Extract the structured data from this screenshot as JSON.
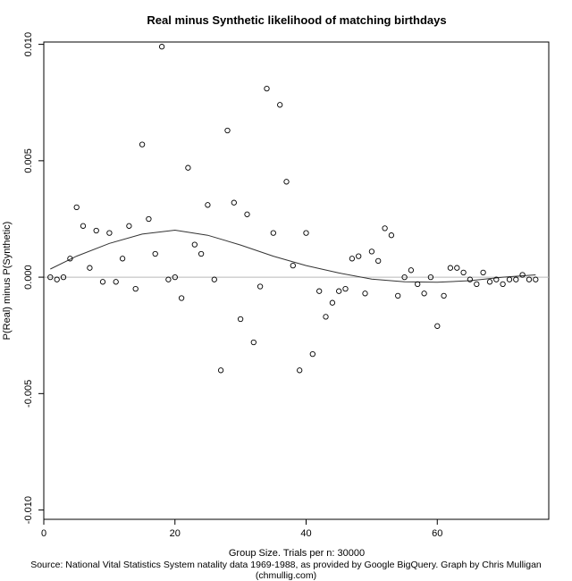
{
  "chart_data": {
    "type": "scatter",
    "title": "Real minus Synthetic likelihood of matching birthdays",
    "xlabel": "Group Size. Trials per n: 30000",
    "ylabel": "P(Real) minus P(Synthetic)",
    "xlim": [
      0,
      77
    ],
    "ylim": [
      -0.0104,
      0.0101
    ],
    "x_ticks": [
      0,
      20,
      40,
      60
    ],
    "y_ticks": [
      -0.01,
      -0.005,
      0.0,
      0.005,
      0.01
    ],
    "y_tick_labels": [
      "-0.010",
      "-0.005",
      "0.000",
      "0.005",
      "0.010"
    ],
    "reference_line_y": 0,
    "points": {
      "x": [
        1,
        2,
        3,
        4,
        5,
        6,
        7,
        8,
        9,
        10,
        11,
        12,
        13,
        14,
        15,
        16,
        17,
        18,
        19,
        20,
        21,
        22,
        23,
        24,
        25,
        26,
        27,
        28,
        29,
        30,
        31,
        32,
        33,
        34,
        35,
        36,
        37,
        38,
        39,
        40,
        41,
        42,
        43,
        44,
        45,
        46,
        47,
        48,
        49,
        50,
        51,
        52,
        53,
        54,
        55,
        56,
        57,
        58,
        59,
        60,
        61,
        62,
        63,
        64,
        65,
        66,
        67,
        68,
        69,
        70,
        71,
        72,
        73,
        74,
        75
      ],
      "y": [
        0.0,
        -0.0001,
        0.0,
        0.0008,
        0.003,
        0.0022,
        0.0004,
        0.002,
        -0.0002,
        0.0019,
        -0.0002,
        0.0008,
        0.0022,
        -0.0005,
        0.0057,
        0.0025,
        0.001,
        0.0099,
        -0.0001,
        0.0,
        -0.0009,
        0.0047,
        0.0014,
        0.001,
        0.0031,
        -0.0001,
        -0.004,
        0.0063,
        0.0032,
        -0.0018,
        0.0027,
        -0.0028,
        -0.0004,
        0.0081,
        0.0019,
        0.0074,
        0.0041,
        0.0005,
        -0.004,
        0.0019,
        -0.0033,
        -0.0006,
        -0.0017,
        -0.0011,
        -0.0006,
        -0.0005,
        0.0008,
        0.0009,
        -0.0007,
        0.0011,
        0.0007,
        0.0021,
        0.0018,
        -0.0008,
        0.0,
        0.0003,
        -0.0003,
        -0.0007,
        0.0,
        -0.0021,
        -0.0008,
        0.0004,
        0.0004,
        0.0002,
        -0.0001,
        -0.0003,
        0.0002,
        -0.0002,
        -0.0001,
        -0.0003,
        -0.0001,
        -0.0001,
        0.0001,
        -0.0001,
        -0.0001
      ]
    },
    "smooth_line": {
      "x": [
        1,
        5,
        10,
        15,
        20,
        25,
        30,
        35,
        40,
        45,
        50,
        55,
        60,
        65,
        70,
        75
      ],
      "y": [
        0.00035,
        0.0009,
        0.00145,
        0.00185,
        0.00202,
        0.0018,
        0.00138,
        0.0009,
        0.0005,
        0.00018,
        -8e-05,
        -0.0002,
        -0.00022,
        -0.00015,
        0.0,
        0.0001
      ]
    },
    "grid": false,
    "legend": "none"
  },
  "caption": "Source: National Vital Statistics System natality data 1969-1988, as provided by Google BigQuery.  Graph by Chris Mulligan (chmullig.com)"
}
